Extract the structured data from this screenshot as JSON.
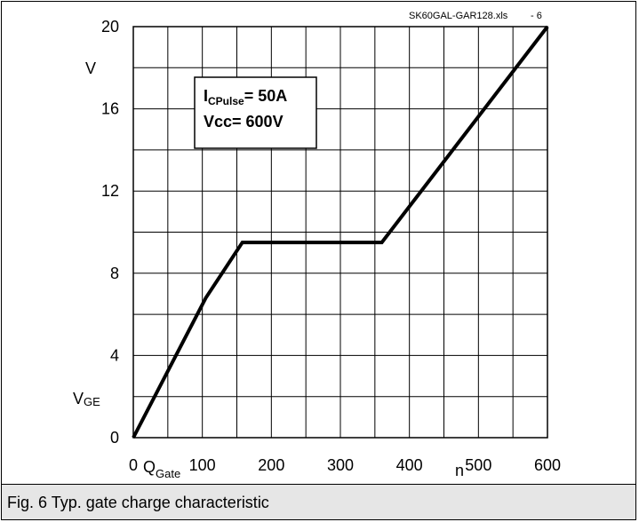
{
  "chart_data": {
    "type": "line",
    "source_label": "SK60GAL-GAR128.xls",
    "figure_number": "- 6",
    "caption": "Fig. 6 Typ. gate charge characteristic",
    "xlim": [
      0,
      600
    ],
    "ylim": [
      0,
      20
    ],
    "x_ticks": [
      0,
      100,
      200,
      300,
      400,
      500,
      600
    ],
    "x_tick_labels": [
      "0",
      "100",
      "200",
      "300",
      "400",
      "500",
      "600"
    ],
    "y_ticks": [
      0,
      4,
      8,
      12,
      16,
      20
    ],
    "y_tick_labels": [
      "0",
      "4",
      "8",
      "12",
      "16",
      "20"
    ],
    "x_minor_grid": [
      50,
      150,
      250,
      350,
      450,
      550
    ],
    "y_minor_grid": [
      2,
      6,
      10,
      14,
      18
    ],
    "grid": true,
    "xlabel": {
      "main": "Q",
      "sub": "Gate"
    },
    "xunit": "n",
    "ylabel": {
      "main": "V",
      "sub": "GE"
    },
    "yunit": "V",
    "annotation": {
      "line1_main": "I",
      "line1_sub": "CPulse",
      "line1_value": "= 50A",
      "line2": "Vcc= 600V"
    },
    "series": [
      {
        "x": [
          0,
          105,
          158,
          360,
          600
        ],
        "y": [
          0,
          6.8,
          9.5,
          9.5,
          20
        ]
      }
    ]
  }
}
